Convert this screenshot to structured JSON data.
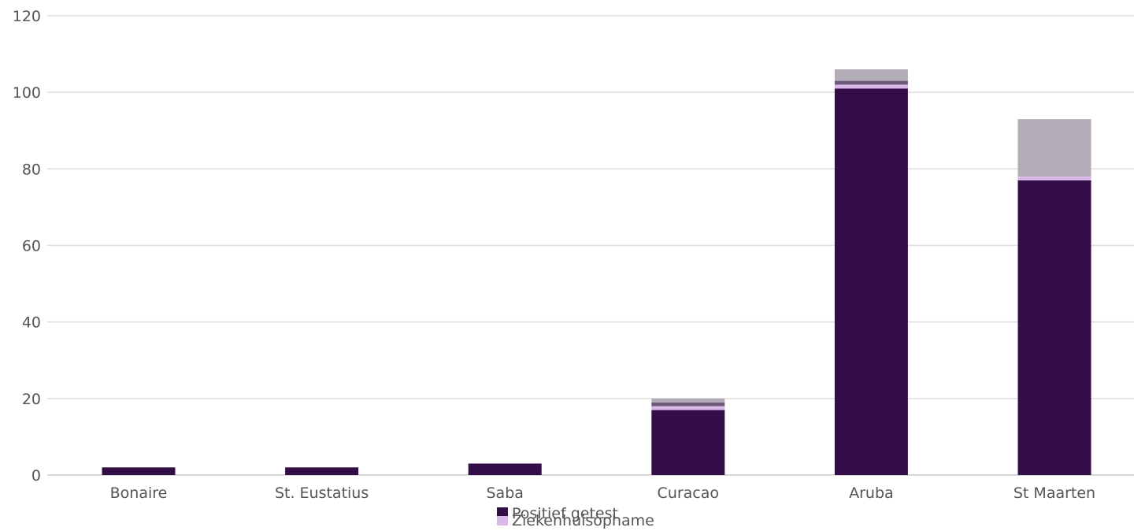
{
  "chart_data": {
    "type": "bar",
    "stacked": true,
    "categories": [
      "Bonaire",
      "St. Eustatius",
      "Saba",
      "Curacao",
      "Aruba",
      "St Maarten"
    ],
    "series": [
      {
        "name": "Positief getest",
        "color": "#330d45",
        "values": [
          2,
          2,
          3,
          17,
          101,
          77
        ]
      },
      {
        "name": "Ziekenhuisophame",
        "color": "#d9b8ea",
        "values": [
          0,
          0,
          0,
          1,
          1,
          1
        ]
      },
      {
        "name": "",
        "color": "#6e5a78",
        "values": [
          0,
          0,
          0,
          1,
          1,
          0
        ]
      },
      {
        "name": "",
        "color": "#b2acb7",
        "values": [
          0,
          0,
          0,
          1,
          3,
          15
        ]
      }
    ],
    "y_ticks": [
      "0",
      "20",
      "40",
      "60",
      "80",
      "100",
      "120"
    ],
    "ylim": [
      0,
      120
    ],
    "grid": true,
    "legend_position": "bottom-center"
  }
}
